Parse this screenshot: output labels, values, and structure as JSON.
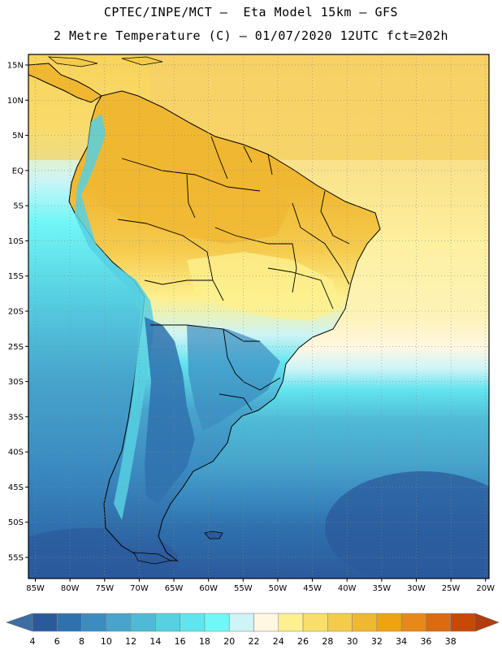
{
  "header": {
    "line1": "CPTEC/INPE/MCT –  Eta Model 15km – GFS",
    "line2": "2 Metre Temperature (C) – 01/07/2020 12UTC fct=202h"
  },
  "axes": {
    "lat_labels": [
      "15N",
      "10N",
      "5N",
      "EQ",
      "5S",
      "10S",
      "15S",
      "20S",
      "25S",
      "30S",
      "35S",
      "40S",
      "45S",
      "50S",
      "55S"
    ],
    "lat_values": [
      15,
      10,
      5,
      0,
      -5,
      -10,
      -15,
      -20,
      -25,
      -30,
      -35,
      -40,
      -45,
      -50,
      -55
    ],
    "lon_labels": [
      "85W",
      "80W",
      "75W",
      "70W",
      "65W",
      "60W",
      "55W",
      "50W",
      "45W",
      "40W",
      "35W",
      "30W",
      "25W",
      "20W"
    ],
    "lon_values": [
      -85,
      -80,
      -75,
      -70,
      -65,
      -60,
      -55,
      -50,
      -45,
      -40,
      -35,
      -30,
      -25,
      -20
    ],
    "lat_range": [
      -58,
      16.5
    ],
    "lon_range": [
      -86,
      -19.5
    ],
    "grid": "dotted"
  },
  "colorbar": {
    "labels": [
      "4",
      "6",
      "8",
      "10",
      "12",
      "14",
      "16",
      "18",
      "20",
      "22",
      "24",
      "26",
      "28",
      "30",
      "32",
      "34",
      "36",
      "38"
    ],
    "colors": [
      "#2b5a9b",
      "#2f71ae",
      "#3b8cc1",
      "#47a4cc",
      "#4fbad6",
      "#57d0e2",
      "#62e4ee",
      "#71f7f7",
      "#cdf4f7",
      "#fff7e2",
      "#fdf08e",
      "#f9de6b",
      "#f5cb4e",
      "#f0b731",
      "#eea412",
      "#e6881a",
      "#db6a10",
      "#c64a06"
    ],
    "left_arrow_color": "#3d6ea3",
    "right_arrow_color": "#b33c0a"
  }
}
